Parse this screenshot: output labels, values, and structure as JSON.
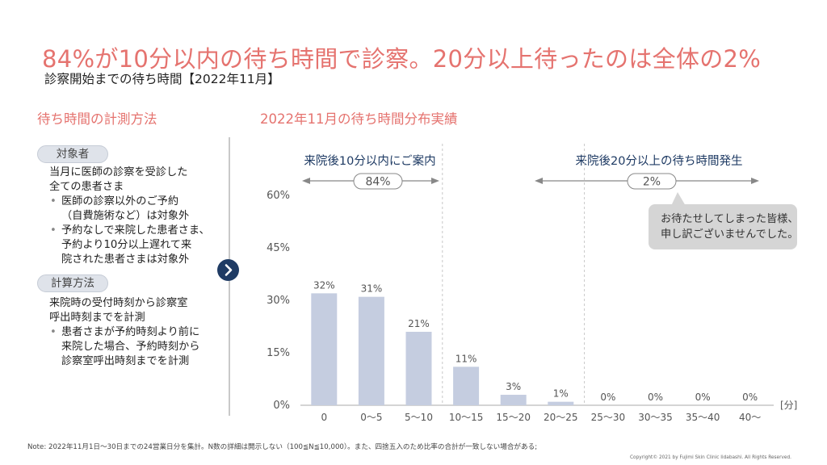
{
  "header": {
    "title": "84%が10分以内の待ち時間で診察。20分以上待ったのは全体の2%",
    "subtitle": "診察開始までの待ち時間【2022年11月】"
  },
  "left_panel": {
    "heading": "待ち時間の計測方法",
    "target_label": "対象者",
    "target_text_1": "当月に医師の診察を受診した",
    "target_text_2": "全ての患者さま",
    "target_bullets": [
      {
        "line1": "医師の診察以外のご予約",
        "line2": "（自費施術など）は対象外"
      },
      {
        "line1": "予約なしで来院した患者さま、",
        "line2": "予約より10分以上遅れて来",
        "line3": "院された患者さまは対象外"
      }
    ],
    "method_label": "計算方法",
    "method_text_1": "来院時の受付時刻から診察室",
    "method_text_2": "呼出時刻までを計測",
    "method_bullets": [
      {
        "line1": "患者さまが予約時刻より前に",
        "line2": "来院した場合、予約時刻から",
        "line3": "診察室呼出時刻までを計測"
      }
    ],
    "bullet_glyph": "•"
  },
  "next_icon": "chevron-right-icon",
  "chart_heading": "2022年11月の待ち時間分布実績",
  "annotations": {
    "left_bracket_label": "来院後10分以内にご案内",
    "left_bracket_value": "84%",
    "right_bracket_label": "来院後20分以上の待ち時間発生",
    "right_bracket_value": "2%",
    "callout_line1": "お待たせしてしまった皆様、",
    "callout_line2": "申し訳ございませんでした。"
  },
  "chart_data": {
    "type": "bar",
    "categories": [
      "0",
      "0～5",
      "5～10",
      "10～15",
      "15～20",
      "20～25",
      "25～30",
      "30～35",
      "35～40",
      "40～"
    ],
    "values": [
      32,
      31,
      21,
      11,
      3,
      1,
      0,
      0,
      0,
      0
    ],
    "data_labels": [
      "32%",
      "31%",
      "21%",
      "11%",
      "3%",
      "1%",
      "0%",
      "0%",
      "0%",
      "0%"
    ],
    "yticks": [
      "0%",
      "15%",
      "30%",
      "45%",
      "60%"
    ],
    "ytick_values": [
      0,
      15,
      30,
      45,
      60
    ],
    "ylim": [
      0,
      60
    ],
    "xunit": "[分]",
    "grid": false,
    "bar_color": "#c5cde0"
  },
  "colors": {
    "accent": "#e5736f",
    "navy": "#1f3b64",
    "bar": "#c5cde0"
  },
  "footer": {
    "note": "Note: 2022年11月1日～30日までの24営業日分を集計。N数の詳細は開示しない（100≦N≦10,000）。また、四捨五入のため比率の合計が一致しない場合がある;",
    "copyright": "Copyright© 2021 by Fujimi Skin Clinic Iidabashi. All Rights Reserved."
  }
}
